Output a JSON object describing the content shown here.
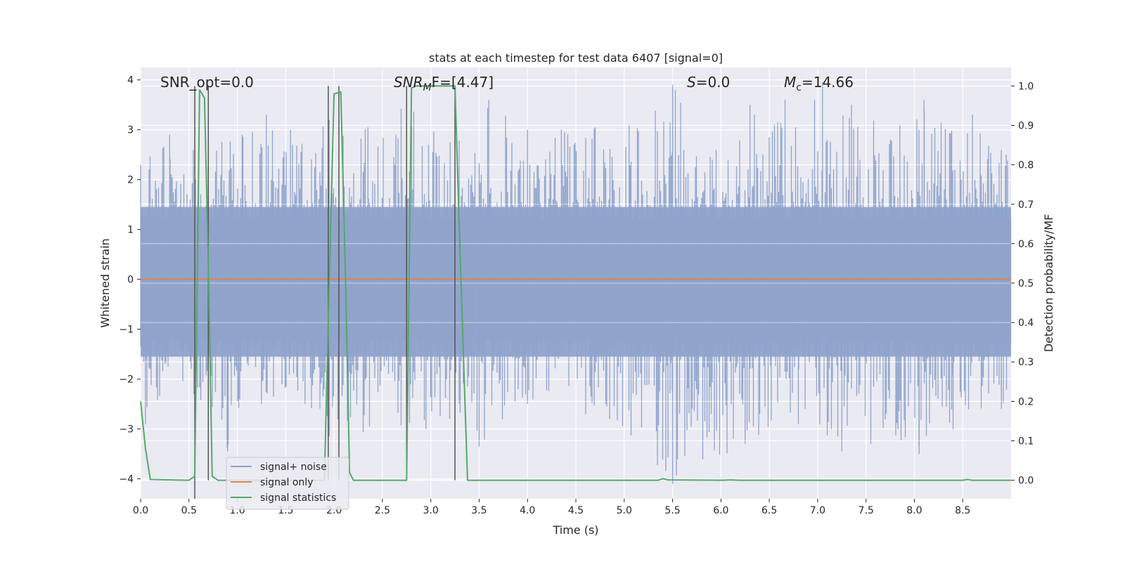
{
  "chart_data": {
    "type": "line",
    "title": "stats at each timestep for test data 6407 [signal=0]",
    "xlabel": "Time (s)",
    "ylabel_left": "Whitened strain",
    "ylabel_right": "Detection probability/MF",
    "xlim": [
      0.0,
      9.0
    ],
    "ylim_left": [
      -4.4,
      4.25
    ],
    "ylim_right": [
      -0.047,
      1.047
    ],
    "x_ticks": [
      "0.0",
      "0.5",
      "1.0",
      "1.5",
      "2.0",
      "2.5",
      "3.0",
      "3.5",
      "4.0",
      "4.5",
      "5.0",
      "5.5",
      "6.0",
      "6.5",
      "7.0",
      "7.5",
      "8.0",
      "8.5"
    ],
    "y_ticks_left": [
      "4",
      "3",
      "2",
      "1",
      "0",
      "−1",
      "−2",
      "−3",
      "−4"
    ],
    "y_ticks_right": [
      "1.0",
      "0.9",
      "0.8",
      "0.7",
      "0.6",
      "0.5",
      "0.4",
      "0.3",
      "0.2",
      "0.1",
      "0.0"
    ],
    "grid": true,
    "legend_position": "lower-left",
    "annotations": {
      "snr_opt": "SNR_opt=0.0",
      "snr_mf_main": "SNR",
      "snr_mf_sub": "M",
      "snr_mf_rest": "F=[4.47]",
      "s_var": "S",
      "s_rest": "=0.0",
      "mc_var": "M",
      "mc_sub": "c",
      "mc_rest": "=14.66"
    },
    "series": [
      {
        "name": "signal+ noise",
        "color": "#8fa3cb",
        "style": "dense noise band",
        "envelope_upper_peaks": [
          [
            0.0,
            2.3
          ],
          [
            0.3,
            2.9
          ],
          [
            0.6,
            2.6
          ],
          [
            1.05,
            2.9
          ],
          [
            1.3,
            3.3
          ],
          [
            1.55,
            3.0
          ],
          [
            1.95,
            3.2
          ],
          [
            2.35,
            3.05
          ],
          [
            2.75,
            3.5
          ],
          [
            3.2,
            2.75
          ],
          [
            3.6,
            3.6
          ],
          [
            4.0,
            3.0
          ],
          [
            4.35,
            3.0
          ],
          [
            4.7,
            3.05
          ],
          [
            5.05,
            3.1
          ],
          [
            5.5,
            3.9
          ],
          [
            5.95,
            2.6
          ],
          [
            6.3,
            3.5
          ],
          [
            7.05,
            3.95
          ],
          [
            7.35,
            3.5
          ],
          [
            7.85,
            3.1
          ],
          [
            8.1,
            3.6
          ],
          [
            8.6,
            3.3
          ],
          [
            8.95,
            2.5
          ]
        ],
        "envelope_lower_peaks": [
          [
            0.05,
            -2.9
          ],
          [
            0.55,
            -2.3
          ],
          [
            0.9,
            -3.45
          ],
          [
            1.25,
            -2.5
          ],
          [
            1.7,
            -2.5
          ],
          [
            1.95,
            -3.15
          ],
          [
            2.95,
            -3.0
          ],
          [
            3.5,
            -3.35
          ],
          [
            4.0,
            -2.5
          ],
          [
            4.85,
            -2.8
          ],
          [
            5.5,
            -4.1
          ],
          [
            6.25,
            -3.3
          ],
          [
            6.8,
            -2.9
          ],
          [
            7.25,
            -3.45
          ],
          [
            7.55,
            -3.3
          ],
          [
            8.05,
            -3.5
          ],
          [
            8.4,
            -3.0
          ],
          [
            8.9,
            -2.6
          ]
        ]
      },
      {
        "name": "signal only",
        "color": "#dd8452",
        "x": [
          0.0,
          9.0
        ],
        "y": [
          0.0,
          0.0
        ]
      },
      {
        "name": "signal statistics",
        "color": "#55a868",
        "axis": "right",
        "x": [
          0.0,
          0.05,
          0.1,
          0.5,
          0.56,
          0.61,
          0.66,
          0.7,
          0.74,
          0.8,
          1.9,
          1.95,
          2.0,
          2.07,
          2.12,
          2.16,
          2.2,
          2.4,
          2.75,
          2.8,
          2.85,
          3.25,
          3.3,
          3.38,
          4.0,
          5.0,
          5.35,
          5.4,
          5.45,
          6.0,
          6.1,
          6.2,
          8.5,
          8.55,
          8.6,
          9.0
        ],
        "y": [
          0.2,
          0.08,
          0.002,
          0.0,
          0.01,
          0.99,
          0.97,
          0.55,
          0.01,
          0.0,
          0.0,
          0.5,
          0.98,
          0.985,
          0.5,
          0.02,
          0.0,
          0.0,
          0.0,
          0.995,
          1.0,
          1.0,
          0.6,
          0.0,
          0.0,
          0.0,
          0.0,
          0.004,
          0.001,
          0.0,
          0.001,
          0.0,
          0.0,
          0.002,
          0.0,
          0.0
        ]
      }
    ],
    "vertical_markers": [
      {
        "x": 0.56,
        "y_top": 1.0,
        "y_bottom": -0.047
      },
      {
        "x": 0.7,
        "y_top": 1.0,
        "y_bottom": 0.0
      },
      {
        "x": 1.94,
        "y_top": 1.0,
        "y_bottom": 0.0
      },
      {
        "x": 2.05,
        "y_top": 1.0,
        "y_bottom": 0.0
      },
      {
        "x": 2.75,
        "y_top": 1.0,
        "y_bottom": 0.0
      },
      {
        "x": 3.25,
        "y_top": 1.0,
        "y_bottom": 0.0
      }
    ]
  },
  "colors": {
    "plot_bg": "#eaeaf2",
    "grid": "#ffffff",
    "marker_line": "#555555"
  }
}
